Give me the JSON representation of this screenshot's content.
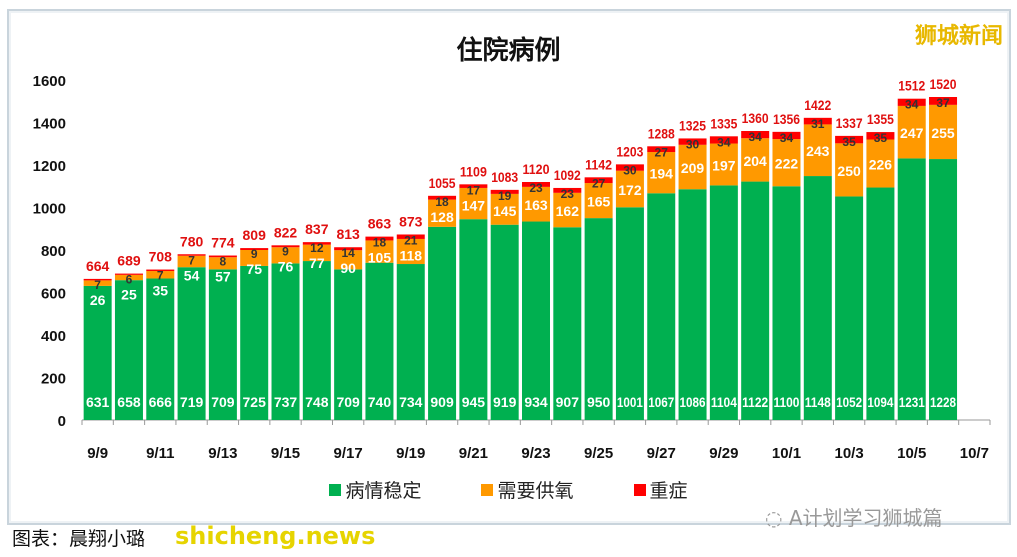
{
  "brand_logo": "狮城新闻",
  "footer": {
    "source": "图表：晨翔小璐",
    "watermark": "shicheng.news",
    "wechat": "A计划学习狮城篇"
  },
  "colors": {
    "stable": "#00b050",
    "oxygen": "#ff9900",
    "icu": "#ff0000",
    "total_label": "#e01010"
  },
  "chart_data": {
    "type": "bar",
    "stacked": true,
    "title": "住院病例",
    "ylim": [
      0,
      1600
    ],
    "yticks": [
      0,
      200,
      400,
      600,
      800,
      1000,
      1200,
      1400,
      1600
    ],
    "xtick_labels": [
      "9/9",
      "9/11",
      "9/13",
      "9/15",
      "9/17",
      "9/19",
      "9/21",
      "9/23",
      "9/25",
      "9/27",
      "9/29",
      "10/1",
      "10/3",
      "10/5",
      "10/7"
    ],
    "categories": [
      "9/9",
      "9/10",
      "9/11",
      "9/12",
      "9/13",
      "9/14",
      "9/15",
      "9/16",
      "9/17",
      "9/18",
      "9/19",
      "9/20",
      "9/21",
      "9/22",
      "9/23",
      "9/24",
      "9/25",
      "9/26",
      "9/27",
      "9/28",
      "9/29",
      "9/30",
      "10/1",
      "10/2",
      "10/3",
      "10/4",
      "10/5",
      "10/6"
    ],
    "legend_position": "bottom",
    "series": [
      {
        "name": "病情稳定",
        "values": [
          631,
          658,
          666,
          719,
          709,
          725,
          737,
          748,
          709,
          740,
          734,
          909,
          945,
          919,
          934,
          907,
          950,
          1001,
          1067,
          1086,
          1104,
          1122,
          1100,
          1148,
          1052,
          1094,
          1231,
          1228
        ]
      },
      {
        "name": "需要供氧",
        "values": [
          26,
          25,
          35,
          54,
          57,
          75,
          76,
          77,
          90,
          105,
          118,
          128,
          147,
          145,
          163,
          162,
          165,
          172,
          194,
          209,
          197,
          204,
          222,
          243,
          250,
          226,
          247,
          255
        ]
      },
      {
        "name": "重症",
        "values": [
          7,
          6,
          7,
          7,
          8,
          9,
          9,
          12,
          14,
          18,
          21,
          18,
          17,
          19,
          23,
          23,
          27,
          30,
          27,
          30,
          34,
          34,
          34,
          31,
          35,
          35,
          34,
          37
        ]
      }
    ],
    "totals": [
      664,
      689,
      708,
      780,
      774,
      809,
      822,
      837,
      813,
      863,
      873,
      1055,
      1109,
      1083,
      1120,
      1092,
      1142,
      1203,
      1288,
      1325,
      1335,
      1360,
      1356,
      1422,
      1337,
      1355,
      1512,
      1520
    ]
  }
}
